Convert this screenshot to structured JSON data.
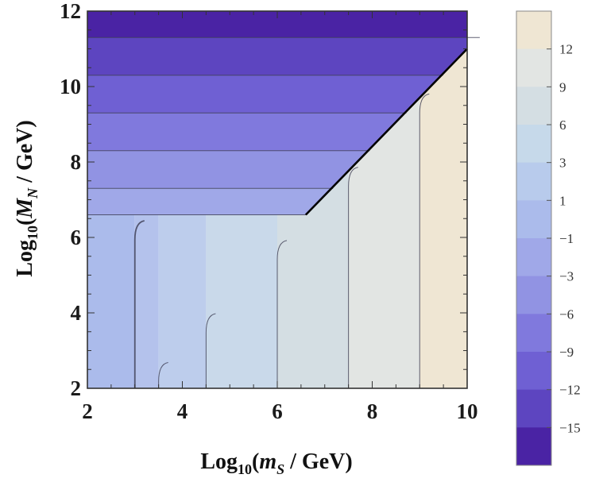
{
  "chart_data": {
    "type": "contour",
    "xlabel": {
      "prefix": "Log",
      "sub": "10",
      "open": "(",
      "var": "m",
      "var_sub": "S",
      "unit": " / GeV)"
    },
    "ylabel": {
      "prefix": "Log",
      "sub": "10",
      "open": "(",
      "var": "M",
      "var_sub": "N",
      "unit": " / GeV)"
    },
    "xlim": [
      2,
      10
    ],
    "ylim": [
      2,
      12
    ],
    "x_ticks": [
      2,
      4,
      6,
      8,
      10
    ],
    "y_ticks": [
      2,
      4,
      6,
      8,
      10,
      12
    ],
    "boundary_line": {
      "from": [
        6.6,
        6.6
      ],
      "to": [
        10,
        11
      ]
    },
    "vertical_contours": [
      3.0,
      3.5,
      4.5,
      6.0,
      7.5,
      9.0
    ],
    "horizontal_contours": [
      6.6,
      7.3,
      8.3,
      9.3,
      10.3,
      11.3
    ],
    "colorbar": {
      "labels": [
        "12",
        "9",
        "6",
        "3",
        "1",
        "−1",
        "−3",
        "−6",
        "−9",
        "−12",
        "−15"
      ],
      "colors": [
        "#efe6d3",
        "#e2e5e3",
        "#d4dee3",
        "#c6d9ea",
        "#b8cbec",
        "#abbbeb",
        "#a0a8e8",
        "#9193e3",
        "#8079dd",
        "#6f60d3",
        "#5d45c0",
        "#4a23a4"
      ]
    },
    "regions_upper": [
      {
        "band": [
          11.3,
          12.0
        ],
        "color": "#4a23a4"
      },
      {
        "band": [
          10.3,
          11.3
        ],
        "color": "#5d45c0"
      },
      {
        "band": [
          9.3,
          10.3
        ],
        "color": "#6f60d3"
      },
      {
        "band": [
          8.3,
          9.3
        ],
        "color": "#8079dd"
      },
      {
        "band": [
          7.3,
          8.3
        ],
        "color": "#9193e3"
      },
      {
        "band": [
          6.6,
          7.3
        ],
        "color": "#a0a8e8"
      }
    ],
    "regions_lower": [
      {
        "band": [
          2.0,
          3.0
        ],
        "color": "#abbbeb"
      },
      {
        "band": [
          3.0,
          3.5
        ],
        "color": "#b4c2ec"
      },
      {
        "band": [
          3.5,
          4.5
        ],
        "color": "#bdcdec"
      },
      {
        "band": [
          4.5,
          6.0
        ],
        "color": "#c9d9ea"
      },
      {
        "band": [
          6.0,
          7.5
        ],
        "color": "#d4dee3"
      },
      {
        "band": [
          7.5,
          9.0
        ],
        "color": "#e2e5e3"
      },
      {
        "band": [
          9.0,
          10.0
        ],
        "color": "#efe6d3"
      }
    ]
  }
}
